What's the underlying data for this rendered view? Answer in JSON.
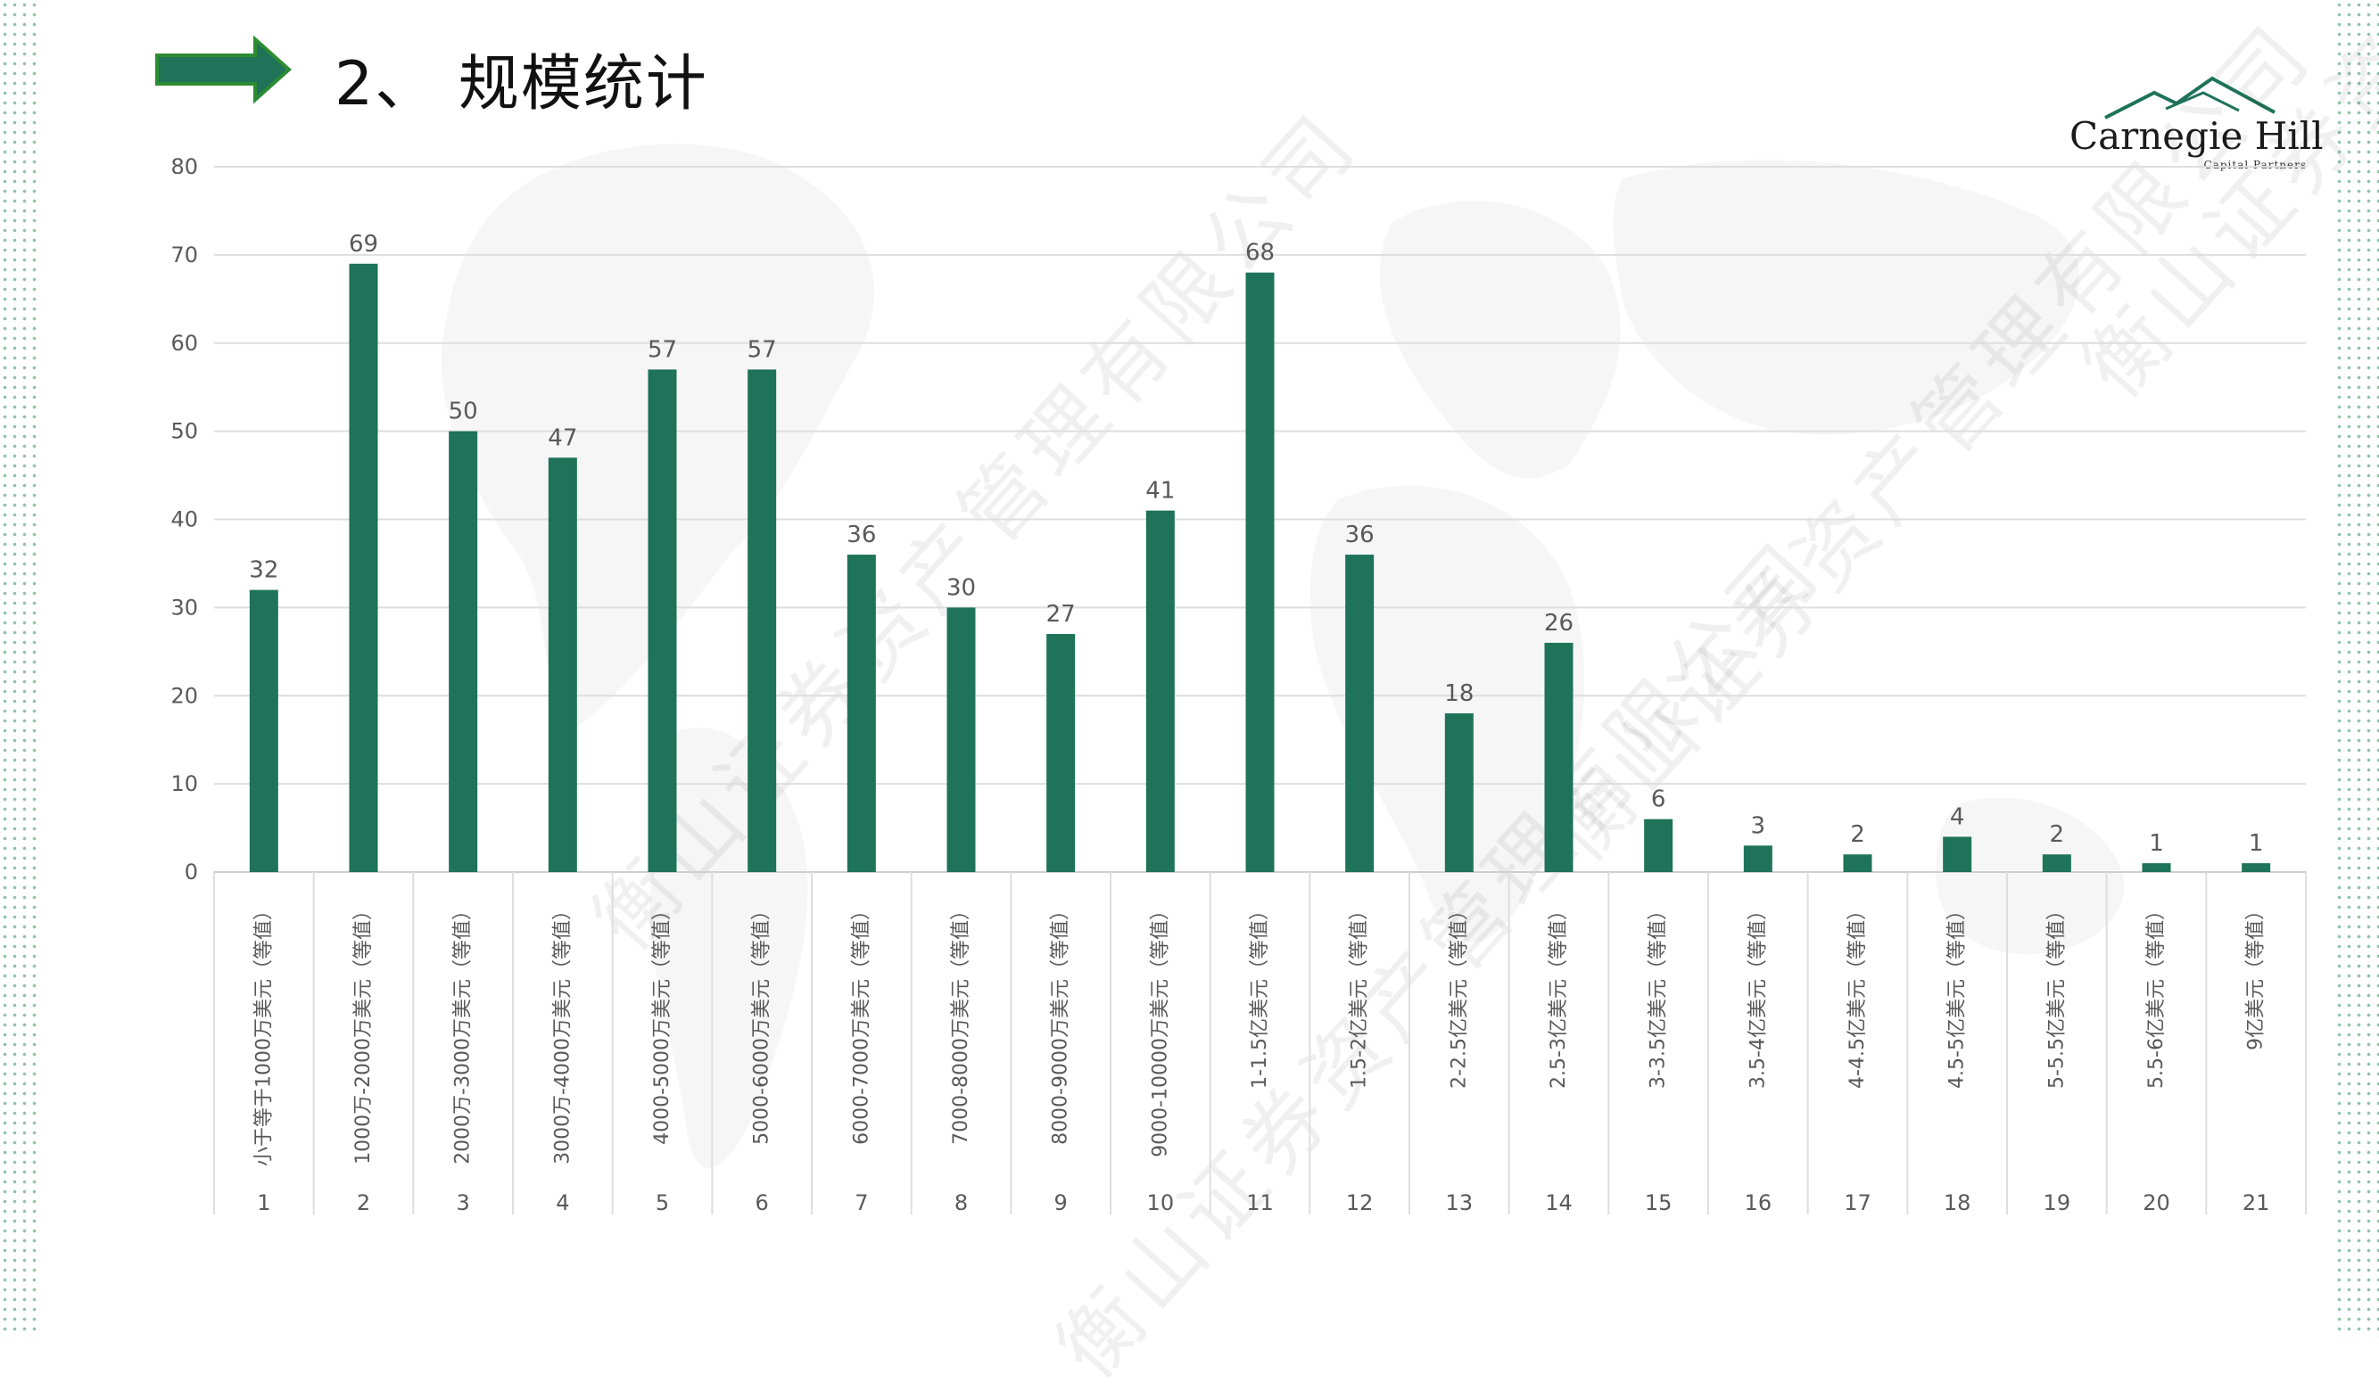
{
  "slide": {
    "title": "2、 规模统计",
    "watermark_text": "衡山证券资产管理有限公司"
  },
  "logo": {
    "name": "Carnegie Hill",
    "subtitle": "Capital Partners"
  },
  "colors": {
    "bar": "#1e7358",
    "arrow": "#1e7358",
    "arrow_border": "#2d8c33",
    "dots": "#8fc3a4",
    "grid": "#dedede",
    "axis_text": "#595959"
  },
  "chart_data": {
    "type": "bar",
    "categories": [
      "小于等于1000万美元（等值）",
      "1000万-2000万美元（等值）",
      "2000万-3000万美元（等值）",
      "3000万-4000万美元（等值）",
      "4000-5000万美元（等值）",
      "5000-6000万美元（等值）",
      "6000-7000万美元（等值）",
      "7000-8000万美元（等值）",
      "8000-9000万美元（等值）",
      "9000-10000万美元（等值）",
      "1-1.5亿美元（等值）",
      "1.5-2亿美元（等值）",
      "2-2.5亿美元（等值）",
      "2.5-3亿美元（等值）",
      "3-3.5亿美元（等值）",
      "3.5-4亿美元（等值）",
      "4-4.5亿美元（等值）",
      "4.5-5亿美元（等值）",
      "5-5.5亿美元（等值）",
      "5.5-6亿美元（等值）",
      "9亿美元（等值）"
    ],
    "index_labels": [
      "1",
      "2",
      "3",
      "4",
      "5",
      "6",
      "7",
      "8",
      "9",
      "10",
      "11",
      "12",
      "13",
      "14",
      "15",
      "16",
      "17",
      "18",
      "19",
      "20",
      "21"
    ],
    "values": [
      32,
      69,
      50,
      47,
      57,
      57,
      36,
      30,
      27,
      41,
      68,
      36,
      18,
      26,
      6,
      3,
      2,
      4,
      2,
      1,
      1
    ],
    "ylim": [
      0,
      80
    ],
    "yticks": [
      0,
      10,
      20,
      30,
      40,
      50,
      60,
      70,
      80
    ],
    "grid": true,
    "data_labels": true,
    "title": "",
    "xlabel": "",
    "ylabel": ""
  }
}
